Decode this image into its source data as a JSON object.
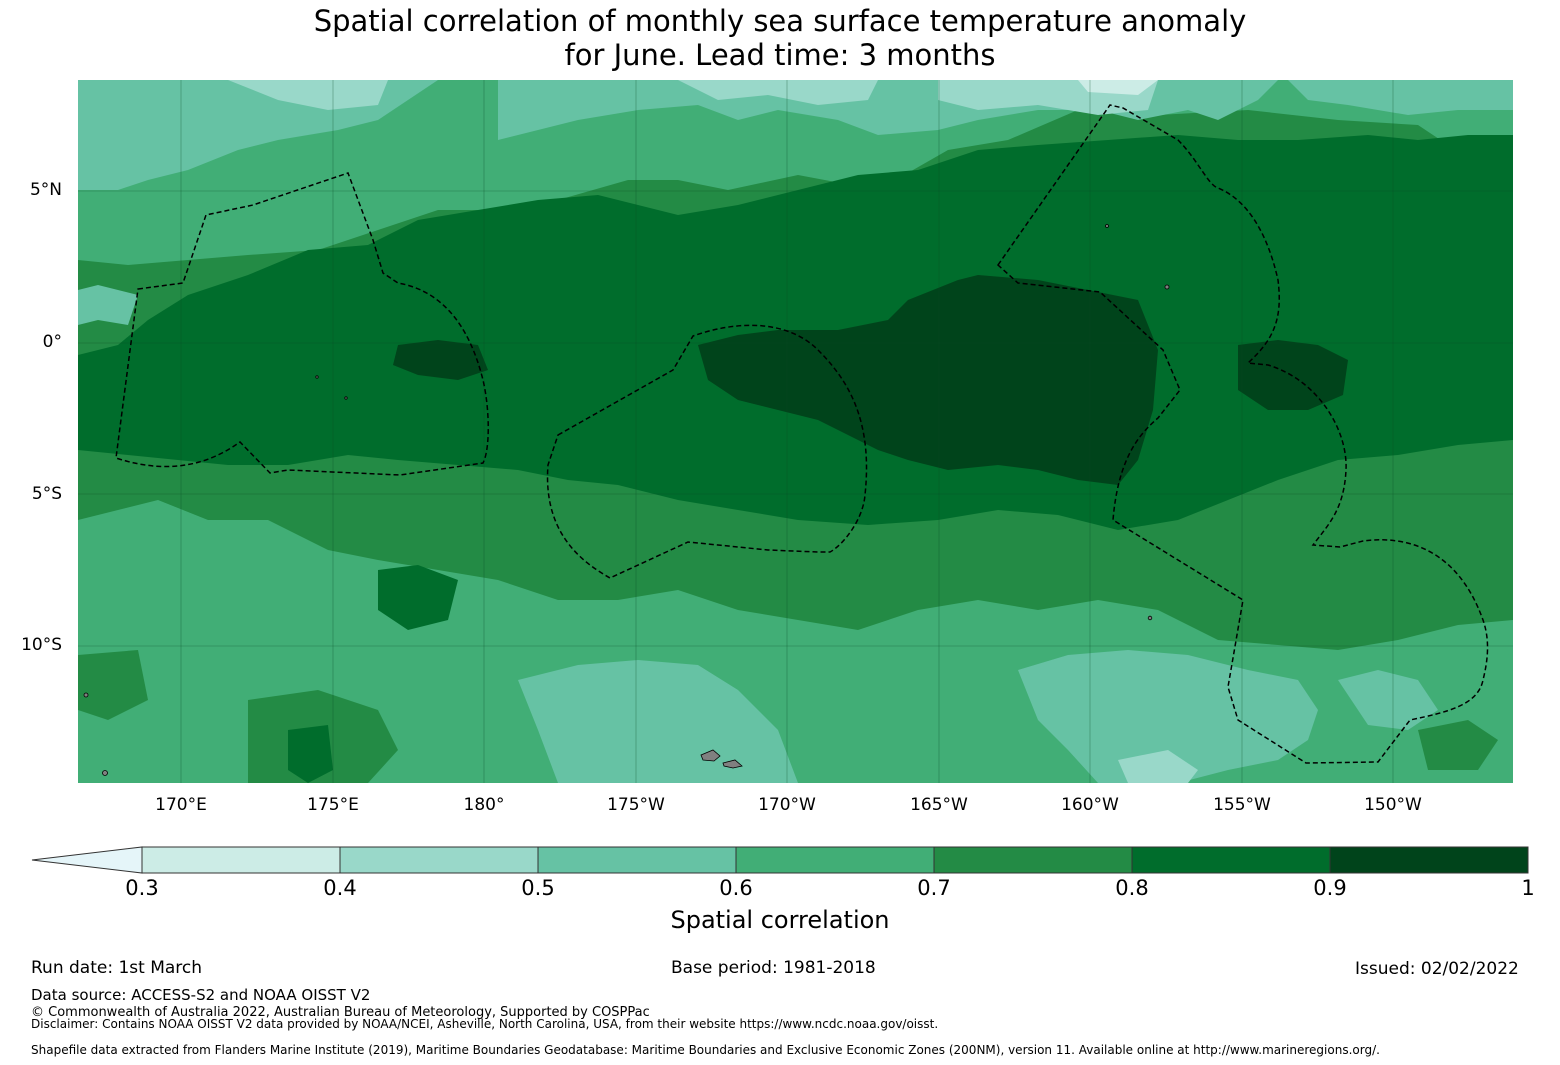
{
  "title": {
    "line1": "Spatial correlation of monthly sea surface temperature anomaly",
    "line2": "for June. Lead time: 3 months"
  },
  "map": {
    "lat_labels": [
      "5°N",
      "0°",
      "5°S",
      "10°S"
    ],
    "lon_labels": [
      "170°E",
      "175°E",
      "180°",
      "175°W",
      "170°W",
      "165°W",
      "160°W",
      "155°W",
      "150°W"
    ]
  },
  "colorbar": {
    "label": "Spatial correlation",
    "ticks": [
      "0.3",
      "0.4",
      "0.5",
      "0.6",
      "0.7",
      "0.8",
      "0.9",
      "1"
    ],
    "bins": [
      {
        "range": "<0.3",
        "color": "#e5f5f9"
      },
      {
        "range": "0.3-0.4",
        "color": "#ccece6"
      },
      {
        "range": "0.4-0.5",
        "color": "#99d8c9"
      },
      {
        "range": "0.5-0.6",
        "color": "#66c2a4"
      },
      {
        "range": "0.6-0.7",
        "color": "#41ae76"
      },
      {
        "range": "0.7-0.8",
        "color": "#238b45"
      },
      {
        "range": "0.8-0.9",
        "color": "#006d2c"
      },
      {
        "range": "0.9-1",
        "color": "#00441b"
      }
    ]
  },
  "footer": {
    "run_date": "Run date: 1st March",
    "base_period": "Base period: 1981-2018",
    "issued": "Issued: 02/02/2022",
    "data_source": "Data source: ACCESS-S2 and NOAA OISST V2",
    "copyright": "© Commonwealth of Australia 2022, Australian Bureau of Meteorology, Supported by COSPPac",
    "disclaimer": "Disclaimer: Contains NOAA OISST V2 data provided by NOAA/NCEI, Asheville, North Carolina, USA, from their website https://www.ncdc.noaa.gov/oisst.",
    "shapefile": "Shapefile data extracted from Flanders Marine Institute (2019), Maritime Boundaries Geodatabase: Maritime Boundaries and Exclusive Economic Zones (200NM), version 11. Available online at http://www.marineregions.org/."
  }
}
